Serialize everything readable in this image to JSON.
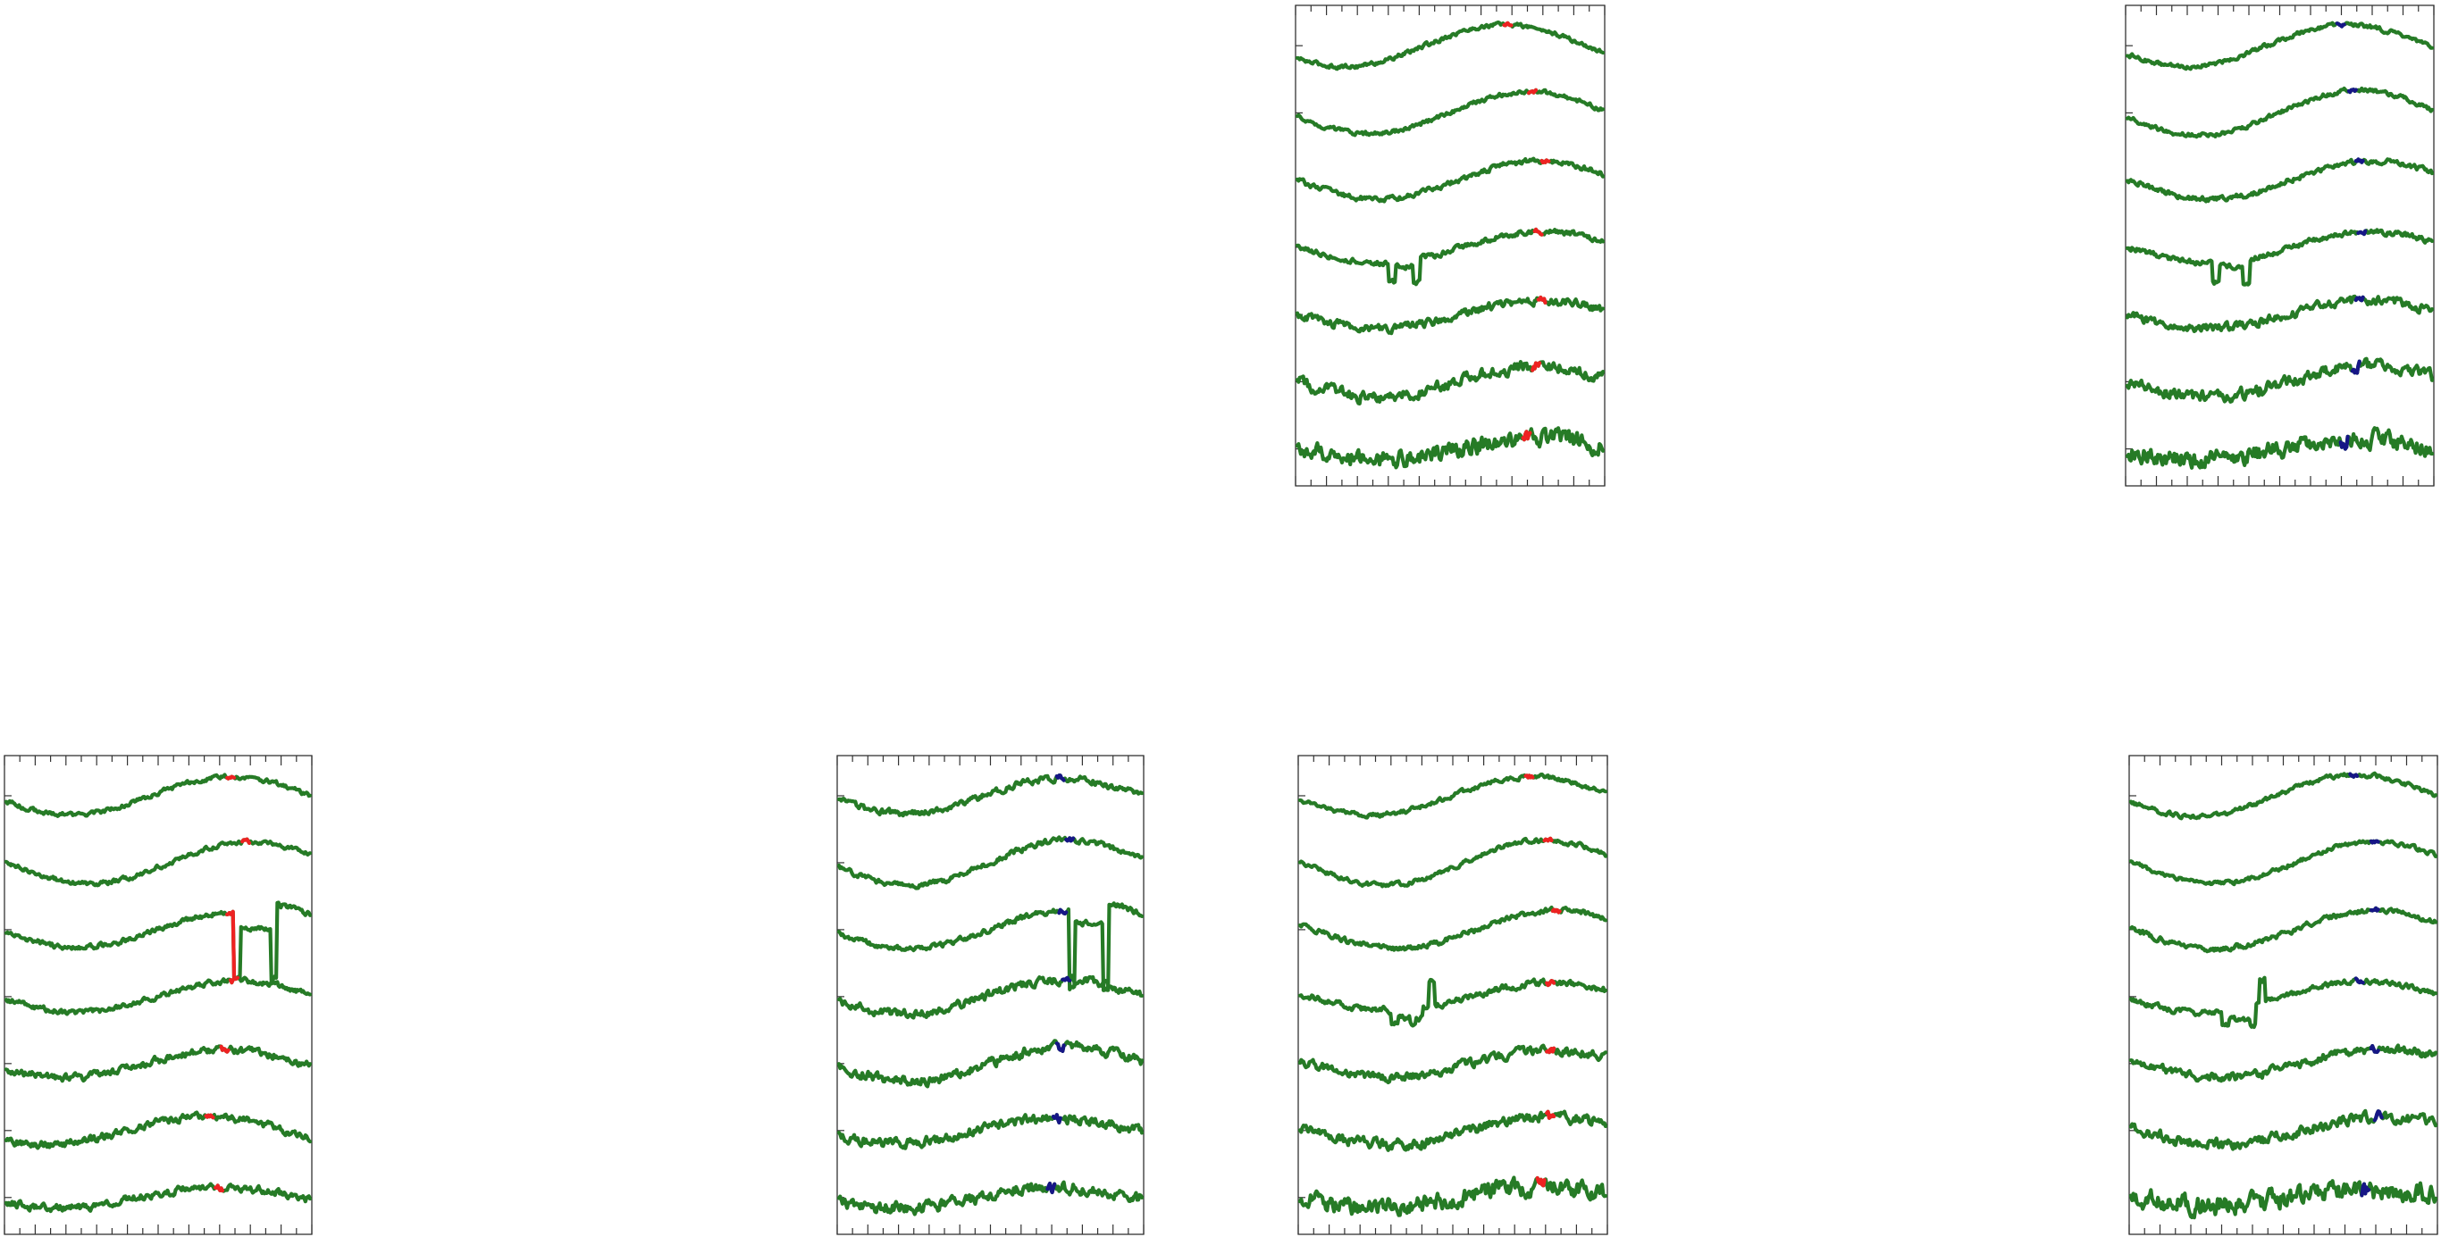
{
  "colors": {
    "trace": "#267b26",
    "marker_red": "#ee2222",
    "marker_blue": "#161686",
    "frame": "#333333"
  },
  "chart_data": [
    {
      "type": "line",
      "panel": "top-center",
      "xlim": [
        0,
        1
      ],
      "marker_color": "red",
      "series": [
        {
          "amp": 1.2,
          "peak": 0.68,
          "noise": 0.2,
          "marker_x": 0.69
        },
        {
          "amp": 1.2,
          "peak": 0.76,
          "noise": 0.2,
          "marker_x": 0.77
        },
        {
          "amp": 1.1,
          "peak": 0.79,
          "noise": 0.25,
          "marker_x": 0.81
        },
        {
          "amp": 0.9,
          "peak": 0.8,
          "noise": 0.25,
          "marker_x": 0.79,
          "dips": [
            [
              0.3,
              0.32,
              -2.0
            ],
            [
              0.38,
              0.4,
              -2.0
            ]
          ],
          "drop_range": [
            0.32,
            0.4,
            -1.1
          ]
        },
        {
          "amp": 0.8,
          "peak": 0.79,
          "noise": 0.4,
          "marker_x": 0.8
        },
        {
          "amp": 0.9,
          "peak": 0.79,
          "noise": 0.55,
          "marker_x": 0.78
        },
        {
          "amp": 0.6,
          "peak": 0.79,
          "noise": 0.8,
          "marker_x": 0.75
        }
      ]
    },
    {
      "type": "line",
      "panel": "top-right",
      "xlim": [
        0,
        1
      ],
      "marker_color": "blue",
      "series": [
        {
          "amp": 1.2,
          "peak": 0.72,
          "noise": 0.2,
          "marker_x": 0.7
        },
        {
          "amp": 1.3,
          "peak": 0.76,
          "noise": 0.2,
          "marker_x": 0.74
        },
        {
          "amp": 1.1,
          "peak": 0.8,
          "noise": 0.25,
          "marker_x": 0.76
        },
        {
          "amp": 0.9,
          "peak": 0.8,
          "noise": 0.25,
          "marker_x": 0.77,
          "dips": [
            [
              0.28,
              0.3,
              -2.0
            ],
            [
              0.38,
              0.4,
              -2.0
            ]
          ],
          "drop_range": [
            0.3,
            0.4,
            -1.1
          ]
        },
        {
          "amp": 0.8,
          "peak": 0.79,
          "noise": 0.4,
          "marker_x": 0.76
        },
        {
          "amp": 0.9,
          "peak": 0.79,
          "noise": 0.55,
          "marker_x": 0.75
        },
        {
          "amp": 0.6,
          "peak": 0.76,
          "noise": 0.8,
          "marker_x": 0.71
        }
      ]
    },
    {
      "type": "line",
      "panel": "bottom-left",
      "xlim": [
        0,
        1
      ],
      "marker_color": "red",
      "series": [
        {
          "amp": 1.1,
          "peak": 0.74,
          "noise": 0.2,
          "marker_x": 0.74
        },
        {
          "amp": 1.2,
          "peak": 0.8,
          "noise": 0.2,
          "marker_x": 0.79
        },
        {
          "amp": 1.0,
          "peak": 0.76,
          "noise": 0.25,
          "marker_x": 0.74,
          "dips": [
            [
              0.75,
              0.77,
              -2.8
            ],
            [
              0.87,
              0.89,
              -2.8
            ]
          ],
          "drop_range": [
            0.77,
            0.88,
            0.1
          ],
          "spike_after": [
            0.89,
            1.5
          ]
        },
        {
          "amp": 0.9,
          "peak": 0.76,
          "noise": 0.25,
          "marker_x": 0.75
        },
        {
          "amp": 0.8,
          "peak": 0.72,
          "noise": 0.35,
          "marker_x": 0.72
        },
        {
          "amp": 0.8,
          "peak": 0.66,
          "noise": 0.35,
          "marker_x": 0.67
        },
        {
          "amp": 0.6,
          "peak": 0.7,
          "noise": 0.35,
          "marker_x": 0.7
        }
      ]
    },
    {
      "type": "line",
      "panel": "bottom-center-left",
      "xlim": [
        0,
        1
      ],
      "marker_color": "blue",
      "series": [
        {
          "amp": 1.0,
          "peak": 0.74,
          "noise": 0.3,
          "marker_x": 0.73
        },
        {
          "amp": 1.3,
          "peak": 0.76,
          "noise": 0.25,
          "marker_x": 0.76
        },
        {
          "amp": 1.1,
          "peak": 0.76,
          "noise": 0.25,
          "marker_x": 0.74,
          "dips": [
            [
              0.76,
              0.78,
              -3.4
            ],
            [
              0.87,
              0.89,
              -3.4
            ]
          ],
          "drop_range": [
            0.78,
            0.88,
            0.4
          ],
          "spike_after": [
            0.89,
            1.6
          ]
        },
        {
          "amp": 1.0,
          "peak": 0.74,
          "noise": 0.4,
          "marker_x": 0.75
        },
        {
          "amp": 1.0,
          "peak": 0.76,
          "noise": 0.45,
          "marker_x": 0.73
        },
        {
          "amp": 0.7,
          "peak": 0.72,
          "noise": 0.45,
          "marker_x": 0.72
        },
        {
          "amp": 0.6,
          "peak": 0.72,
          "noise": 0.55,
          "marker_x": 0.7
        }
      ]
    },
    {
      "type": "line",
      "panel": "bottom-center-right",
      "xlim": [
        0,
        1
      ],
      "marker_color": "red",
      "series": [
        {
          "amp": 1.1,
          "peak": 0.76,
          "noise": 0.2,
          "marker_x": 0.75
        },
        {
          "amp": 1.3,
          "peak": 0.8,
          "noise": 0.2,
          "marker_x": 0.81
        },
        {
          "amp": 1.1,
          "peak": 0.84,
          "noise": 0.25,
          "marker_x": 0.84
        },
        {
          "amp": 0.8,
          "peak": 0.82,
          "noise": 0.3,
          "marker_x": 0.82,
          "dips": [
            [
              0.3,
              0.32,
              -1.5
            ],
            [
              0.36,
              0.38,
              -1.5
            ]
          ],
          "drop_range": [
            0.3,
            0.4,
            -1.2
          ],
          "step_after": [
            0.42,
            0.3
          ]
        },
        {
          "amp": 0.8,
          "peak": 0.82,
          "noise": 0.4,
          "marker_x": 0.82
        },
        {
          "amp": 0.8,
          "peak": 0.82,
          "noise": 0.5,
          "marker_x": 0.82
        },
        {
          "amp": 0.6,
          "peak": 0.78,
          "noise": 0.8,
          "marker_x": 0.79
        }
      ]
    },
    {
      "type": "line",
      "panel": "bottom-right",
      "xlim": [
        0,
        1
      ],
      "marker_color": "blue",
      "series": [
        {
          "amp": 1.2,
          "peak": 0.74,
          "noise": 0.2,
          "marker_x": 0.73
        },
        {
          "amp": 1.2,
          "peak": 0.8,
          "noise": 0.2,
          "marker_x": 0.8
        },
        {
          "amp": 1.1,
          "peak": 0.8,
          "noise": 0.25,
          "marker_x": 0.8
        },
        {
          "amp": 0.9,
          "peak": 0.76,
          "noise": 0.25,
          "marker_x": 0.75,
          "dips": [
            [
              0.3,
              0.32,
              -1.6
            ],
            [
              0.39,
              0.41,
              -1.6
            ]
          ],
          "drop_range": [
            0.32,
            0.4,
            -1.3
          ],
          "step_after": [
            0.42,
            0.2
          ]
        },
        {
          "amp": 0.8,
          "peak": 0.82,
          "noise": 0.4,
          "marker_x": 0.8
        },
        {
          "amp": 0.8,
          "peak": 0.82,
          "noise": 0.5,
          "marker_x": 0.81
        },
        {
          "amp": 0.4,
          "peak": 0.78,
          "noise": 0.9,
          "marker_x": 0.77
        }
      ]
    }
  ]
}
